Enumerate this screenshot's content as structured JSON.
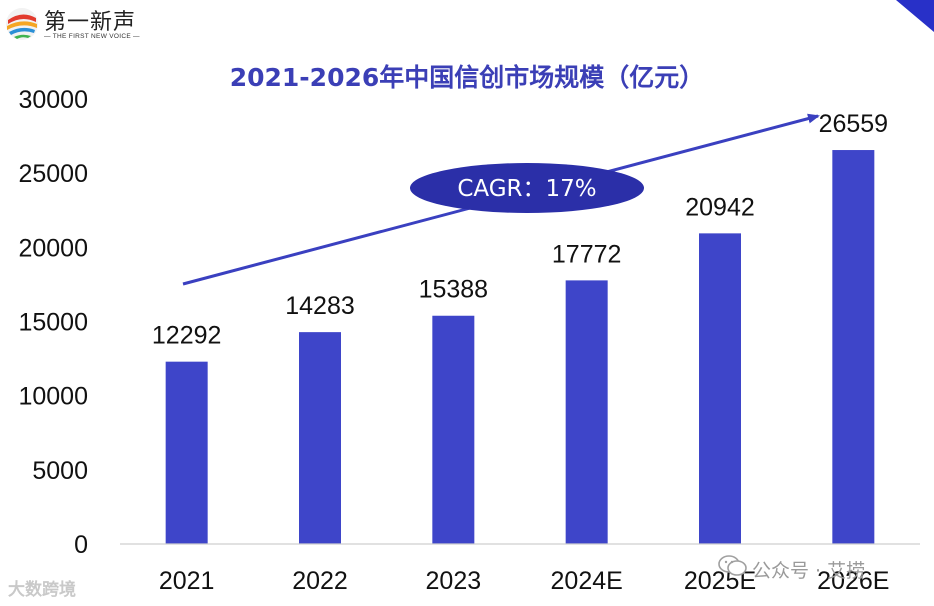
{
  "brand": {
    "name_cn": "第一新声",
    "name_en": "— THE FIRST NEW VOICE —"
  },
  "chart_data": {
    "type": "bar",
    "title": "2021-2026年中国信创市场规模（亿元）",
    "categories": [
      "2021",
      "2022",
      "2023",
      "2024E",
      "2025E",
      "2026E"
    ],
    "values": [
      12292,
      14283,
      15388,
      17772,
      20942,
      26559
    ],
    "ylim": [
      0,
      30000
    ],
    "yticks": [
      0,
      5000,
      10000,
      15000,
      20000,
      25000,
      30000
    ],
    "xlabel": "",
    "ylabel": "",
    "grid": false,
    "legend": "none",
    "bar_color": "#3e45c9",
    "annotation": {
      "text": "CAGR：17%",
      "type": "trend-arrow",
      "fill": "#2b2fa8"
    }
  },
  "watermark": {
    "label": "公众号 · 艾捞",
    "tail": "艺捞"
  },
  "credit": "大数跨境"
}
